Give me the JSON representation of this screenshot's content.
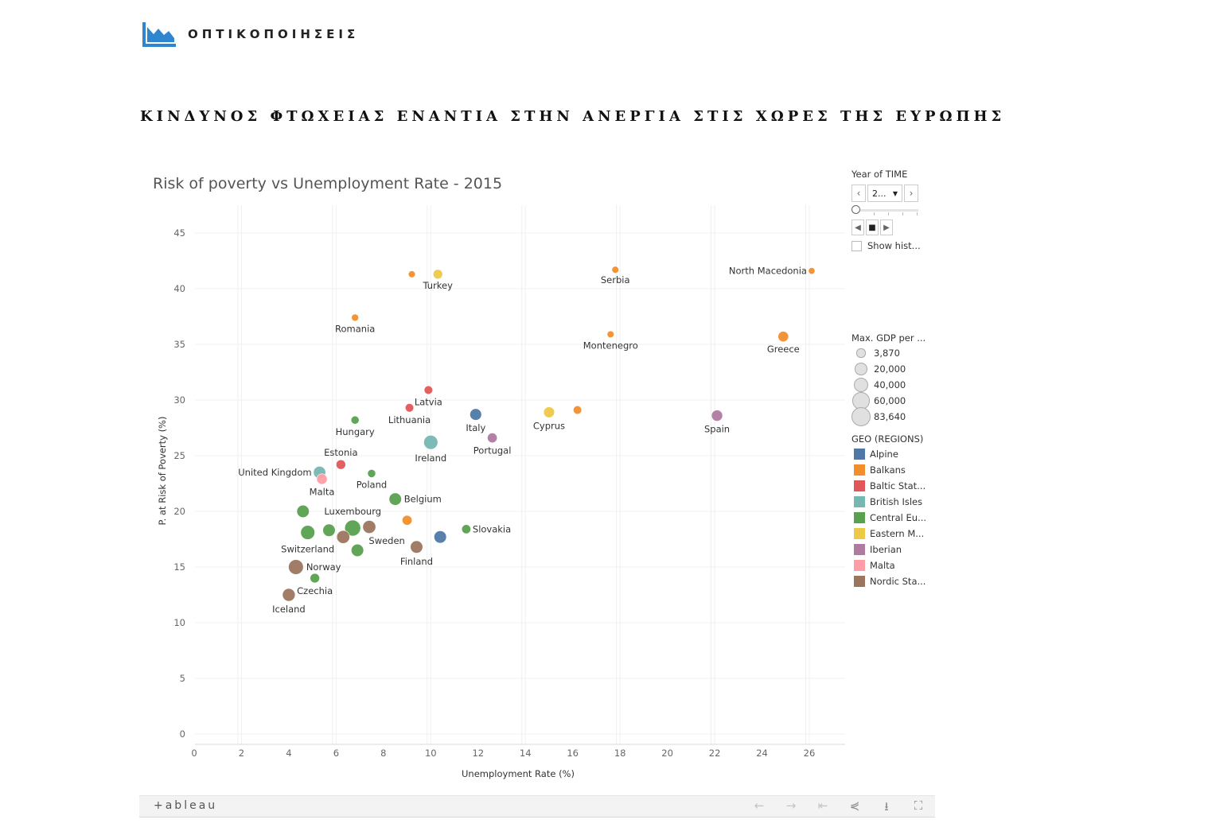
{
  "header": {
    "logo_text": "ΟΠΤΙΚΟΠΟΙΗΣΕΙΣ",
    "page_title": "ΚΙΝΔΥΝΟΣ ΦΤΩΧΕΙΑΣ ΕΝΑΝΤΙΑ ΣΤΗΝ ΑΝΕΡΓΙΑ ΣΤΙΣ ΧΩΡΕΣ ΤΗΣ ΕΥΡΩΠΗΣ",
    "logo_color": "#2f86cf"
  },
  "filters": {
    "year_title": "Year of TIME",
    "year_value": "2...",
    "show_history": "Show hist..."
  },
  "legend": {
    "size_title": "Max. GDP per ...",
    "sizes": [
      {
        "label": "3,870",
        "value": 3870
      },
      {
        "label": "20,000",
        "value": 20000
      },
      {
        "label": "40,000",
        "value": 40000
      },
      {
        "label": "60,000",
        "value": 60000
      },
      {
        "label": "83,640",
        "value": 83640
      }
    ],
    "color_title": "GEO (REGIONS)",
    "regions": [
      {
        "label": "Alpine",
        "color": "#4e79a7"
      },
      {
        "label": "Balkans",
        "color": "#f28e2b"
      },
      {
        "label": "Baltic Stat...",
        "color": "#e15759"
      },
      {
        "label": "British Isles",
        "color": "#76b7b2"
      },
      {
        "label": "Central Eu...",
        "color": "#59a14f"
      },
      {
        "label": "Eastern M...",
        "color": "#edc948"
      },
      {
        "label": "Iberian",
        "color": "#b07aa1"
      },
      {
        "label": "Malta",
        "color": "#ff9da7"
      },
      {
        "label": "Nordic Sta...",
        "color": "#9c755f"
      }
    ]
  },
  "toolbar": {
    "brand": "+ableau"
  },
  "chart_data": {
    "type": "scatter",
    "title": "Risk of poverty vs Unemployment Rate - 2015",
    "xlabel": "Unemployment Rate (%)",
    "ylabel": "P. at Risk of Poverty (%)",
    "xlim": [
      0,
      27.2
    ],
    "ylim": [
      0,
      46.8
    ],
    "xticks": [
      0,
      2,
      4,
      6,
      8,
      10,
      12,
      14,
      16,
      18,
      20,
      22,
      24,
      26
    ],
    "yticks": [
      0,
      5,
      10,
      15,
      20,
      25,
      30,
      35,
      40,
      45
    ],
    "grid": true,
    "points": [
      {
        "label": "",
        "x": 9.2,
        "y": 41.3,
        "region": "Balkans",
        "size": 5000
      },
      {
        "label": "Turkey",
        "x": 10.3,
        "y": 41.3,
        "region": "Eastern M...",
        "size": 18000
      },
      {
        "label": "Serbia",
        "x": 17.8,
        "y": 41.7,
        "region": "Balkans",
        "size": 5000
      },
      {
        "label": "North Macedonia",
        "x": 26.1,
        "y": 41.6,
        "region": "Balkans",
        "size": 4000
      },
      {
        "label": "Romania",
        "x": 6.8,
        "y": 37.4,
        "region": "Balkans",
        "size": 6000
      },
      {
        "label": "Montenegro",
        "x": 17.6,
        "y": 35.9,
        "region": "Balkans",
        "size": 5000
      },
      {
        "label": "Greece",
        "x": 24.9,
        "y": 35.7,
        "region": "Balkans",
        "size": 25000
      },
      {
        "label": "Latvia",
        "x": 9.9,
        "y": 30.9,
        "region": "Baltic Stat...",
        "size": 12000
      },
      {
        "label": "Lithuania",
        "x": 9.1,
        "y": 29.3,
        "region": "Baltic Stat...",
        "size": 12000
      },
      {
        "label": "Italy",
        "x": 11.9,
        "y": 28.7,
        "region": "Alpine",
        "size": 35000
      },
      {
        "label": "Cyprus",
        "x": 15.0,
        "y": 28.9,
        "region": "Eastern M...",
        "size": 28000
      },
      {
        "label": "",
        "x": 16.2,
        "y": 29.1,
        "region": "Balkans",
        "size": 12000
      },
      {
        "label": "Spain",
        "x": 22.1,
        "y": 28.6,
        "region": "Iberian",
        "size": 30000
      },
      {
        "label": "Hungary",
        "x": 6.8,
        "y": 28.2,
        "region": "Central Eu...",
        "size": 10000
      },
      {
        "label": "Portugal",
        "x": 12.6,
        "y": 26.6,
        "region": "Iberian",
        "size": 20000
      },
      {
        "label": "Ireland",
        "x": 10.0,
        "y": 26.2,
        "region": "British Isles",
        "size": 60000
      },
      {
        "label": "Estonia",
        "x": 6.2,
        "y": 24.2,
        "region": "Baltic Stat...",
        "size": 18000
      },
      {
        "label": "United Kingdom",
        "x": 5.3,
        "y": 23.5,
        "region": "British Isles",
        "size": 40000
      },
      {
        "label": "Poland",
        "x": 7.5,
        "y": 23.4,
        "region": "Central Eu...",
        "size": 10000
      },
      {
        "label": "Malta",
        "x": 5.4,
        "y": 22.9,
        "region": "Malta",
        "size": 25000
      },
      {
        "label": "Belgium",
        "x": 8.5,
        "y": 21.1,
        "region": "Central Eu...",
        "size": 42000
      },
      {
        "label": "",
        "x": 4.6,
        "y": 20.0,
        "region": "Central Eu...",
        "size": 42000
      },
      {
        "label": "",
        "x": 9.0,
        "y": 19.2,
        "region": "Balkans",
        "size": 20000
      },
      {
        "label": "Luxembourg",
        "x": 6.7,
        "y": 18.5,
        "region": "Central Eu...",
        "size": 83640
      },
      {
        "label": "",
        "x": 7.4,
        "y": 18.6,
        "region": "Nordic Sta...",
        "size": 48000
      },
      {
        "label": "Slovakia",
        "x": 11.5,
        "y": 18.4,
        "region": "Central Eu...",
        "size": 15000
      },
      {
        "label": "",
        "x": 5.7,
        "y": 18.3,
        "region": "Central Eu...",
        "size": 42000
      },
      {
        "label": "Switzerland",
        "x": 4.8,
        "y": 18.1,
        "region": "Central Eu...",
        "size": 60000
      },
      {
        "label": "",
        "x": 6.3,
        "y": 17.7,
        "region": "Nordic Sta...",
        "size": 48000
      },
      {
        "label": "",
        "x": 10.4,
        "y": 17.7,
        "region": "Alpine",
        "size": 42000
      },
      {
        "label": "Sweden",
        "x": 6.9,
        "y": 16.5,
        "region": "Central Eu...",
        "size": 42000
      },
      {
        "label": "Finland",
        "x": 9.4,
        "y": 16.8,
        "region": "Nordic Sta...",
        "size": 42000
      },
      {
        "label": "Norway",
        "x": 4.3,
        "y": 15.0,
        "region": "Nordic Sta...",
        "size": 70000
      },
      {
        "label": "Czechia",
        "x": 5.1,
        "y": 14.0,
        "region": "Central Eu...",
        "size": 18000
      },
      {
        "label": "Iceland",
        "x": 4.0,
        "y": 12.5,
        "region": "Nordic Sta...",
        "size": 45000
      }
    ]
  }
}
